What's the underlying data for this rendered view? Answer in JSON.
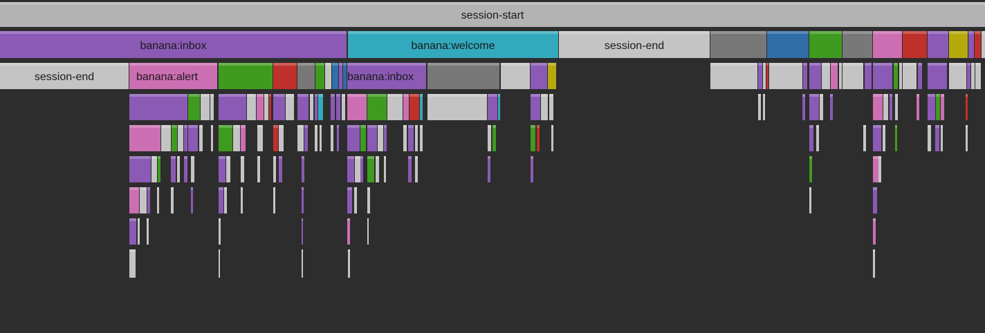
{
  "chart_data": {
    "type": "icicle",
    "root": {
      "label": "session-start",
      "color": "#b3b3b3",
      "children": [
        {
          "label": "banana:inbox",
          "color": "#8a5ab5",
          "span": [
            0,
            501
          ],
          "children": [
            {
              "label": "session-end",
              "color": "#c0c0c0",
              "span": [
                0,
                186
              ]
            },
            {
              "label": "banana:alert",
              "color": "#cc6fb2",
              "span": [
                186,
                315
              ]
            }
          ]
        },
        {
          "label": "banana:welcome",
          "color": "#33a9bd",
          "span": [
            501,
            807
          ],
          "children": [
            {
              "label": "banana:inbox",
              "color": "#8a5ab5",
              "span": [
                501,
                617
              ]
            }
          ]
        },
        {
          "label": "session-end",
          "color": "#c0c0c0",
          "span": [
            807,
            1026
          ]
        }
      ]
    },
    "palette": {
      "purple": "#8a5ab5",
      "teal": "#33a9bd",
      "pink": "#cc6fb2",
      "green": "#3f9b1f",
      "red": "#c0302a",
      "dark_gray": "#787878",
      "light_gray": "#c4c4c4",
      "blue": "#2f6ea6",
      "olive": "#b5a90e",
      "background": "#2d2d2d"
    }
  }
}
